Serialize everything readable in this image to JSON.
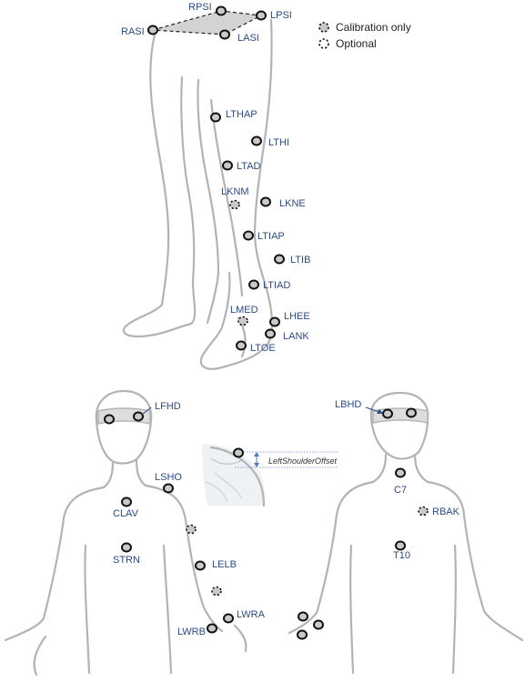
{
  "legend": {
    "calibration_only": "Calibration only",
    "optional": "Optional"
  },
  "inset": {
    "offset_label": "LeftShoulderOffset"
  },
  "leg_markers": {
    "rpsi": "RPSI",
    "lpsi": "LPSI",
    "rasi": "RASI",
    "lasi": "LASI",
    "lthap": "LTHAP",
    "lthi": "LTHI",
    "ltad": "LTAD",
    "lknm": "LKNM",
    "lkne": "LKNE",
    "ltiap": "LTIAP",
    "ltib": "LTIB",
    "ltiad": "LTIAD",
    "lmed": "LMED",
    "lhee": "LHEE",
    "lank": "LANK",
    "ltoe": "LTOE"
  },
  "front_markers": {
    "lfhd": "LFHD",
    "lsho": "LSHO",
    "clav": "CLAV",
    "strn": "STRN",
    "lelb": "LELB",
    "lwra": "LWRA",
    "lwrb": "LWRB"
  },
  "back_markers": {
    "lbhd": "LBHD",
    "c7": "C7",
    "rbak": "RBAK",
    "t10": "T10"
  },
  "colors": {
    "label": "#2b4a86",
    "outline": "#b3b3b3",
    "marker_fill": "#c9c9c9",
    "marker_stroke": "#111111",
    "pelvis_fill": "#d3d3d3"
  }
}
